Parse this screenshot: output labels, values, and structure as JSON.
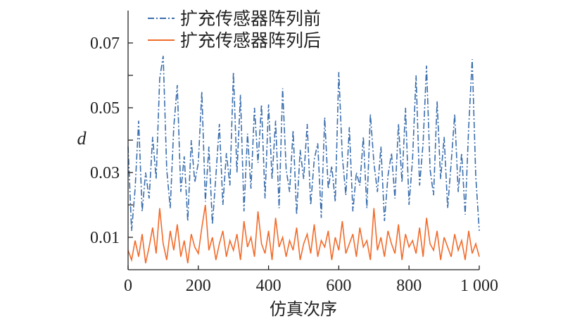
{
  "chart_data": {
    "type": "line",
    "xlabel": "仿真次序",
    "ylabel": "d",
    "xlim": [
      0,
      1000
    ],
    "ylim": [
      0,
      0.08
    ],
    "x_ticks": [
      0,
      200,
      400,
      600,
      800,
      1000
    ],
    "x_tick_labels": [
      "0",
      "200",
      "400",
      "600",
      "800",
      "1 000"
    ],
    "y_ticks": [
      0.01,
      0.03,
      0.05,
      0.07
    ],
    "y_tick_labels": [
      "0.01",
      "0.03",
      "0.05",
      "0.07"
    ],
    "y_minor_ticks": [
      0.02,
      0.04,
      0.06
    ],
    "legend_position": "top-left",
    "x_step": 10,
    "series": [
      {
        "name": "扩充传感器阵列前",
        "color": "#3a6ead",
        "style": "dash-dot",
        "values": [
          0.038,
          0.012,
          0.025,
          0.046,
          0.018,
          0.03,
          0.022,
          0.041,
          0.028,
          0.059,
          0.066,
          0.031,
          0.019,
          0.044,
          0.057,
          0.024,
          0.035,
          0.015,
          0.04,
          0.027,
          0.033,
          0.055,
          0.021,
          0.038,
          0.014,
          0.029,
          0.045,
          0.02,
          0.036,
          0.026,
          0.061,
          0.03,
          0.054,
          0.018,
          0.042,
          0.025,
          0.05,
          0.033,
          0.051,
          0.022,
          0.051,
          0.028,
          0.046,
          0.019,
          0.056,
          0.031,
          0.024,
          0.043,
          0.017,
          0.037,
          0.028,
          0.045,
          0.02,
          0.034,
          0.039,
          0.016,
          0.047,
          0.025,
          0.032,
          0.021,
          0.061,
          0.035,
          0.023,
          0.044,
          0.018,
          0.03,
          0.026,
          0.041,
          0.019,
          0.048,
          0.033,
          0.024,
          0.038,
          0.015,
          0.029,
          0.036,
          0.022,
          0.045,
          0.027,
          0.05,
          0.02,
          0.034,
          0.06,
          0.026,
          0.039,
          0.063,
          0.031,
          0.023,
          0.052,
          0.028,
          0.041,
          0.019,
          0.033,
          0.048,
          0.024,
          0.036,
          0.017,
          0.044,
          0.065,
          0.029,
          0.012
        ]
      },
      {
        "name": "扩充传感器阵列后",
        "color": "#f26b2a",
        "style": "solid",
        "values": [
          0.006,
          0.003,
          0.009,
          0.004,
          0.011,
          0.002,
          0.007,
          0.013,
          0.005,
          0.019,
          0.008,
          0.003,
          0.012,
          0.006,
          0.014,
          0.004,
          0.009,
          0.002,
          0.011,
          0.007,
          0.005,
          0.013,
          0.02,
          0.006,
          0.01,
          0.003,
          0.008,
          0.012,
          0.004,
          0.009,
          0.006,
          0.011,
          0.003,
          0.015,
          0.007,
          0.01,
          0.004,
          0.018,
          0.008,
          0.005,
          0.012,
          0.003,
          0.016,
          0.007,
          0.01,
          0.004,
          0.009,
          0.006,
          0.013,
          0.003,
          0.008,
          0.011,
          0.005,
          0.014,
          0.004,
          0.009,
          0.007,
          0.012,
          0.003,
          0.01,
          0.006,
          0.015,
          0.005,
          0.008,
          0.011,
          0.004,
          0.013,
          0.007,
          0.009,
          0.003,
          0.019,
          0.006,
          0.01,
          0.004,
          0.012,
          0.008,
          0.005,
          0.014,
          0.003,
          0.011,
          0.007,
          0.009,
          0.005,
          0.013,
          0.004,
          0.016,
          0.008,
          0.006,
          0.012,
          0.003,
          0.01,
          0.007,
          0.004,
          0.011,
          0.006,
          0.009,
          0.003,
          0.012,
          0.005,
          0.008,
          0.004
        ]
      }
    ]
  }
}
